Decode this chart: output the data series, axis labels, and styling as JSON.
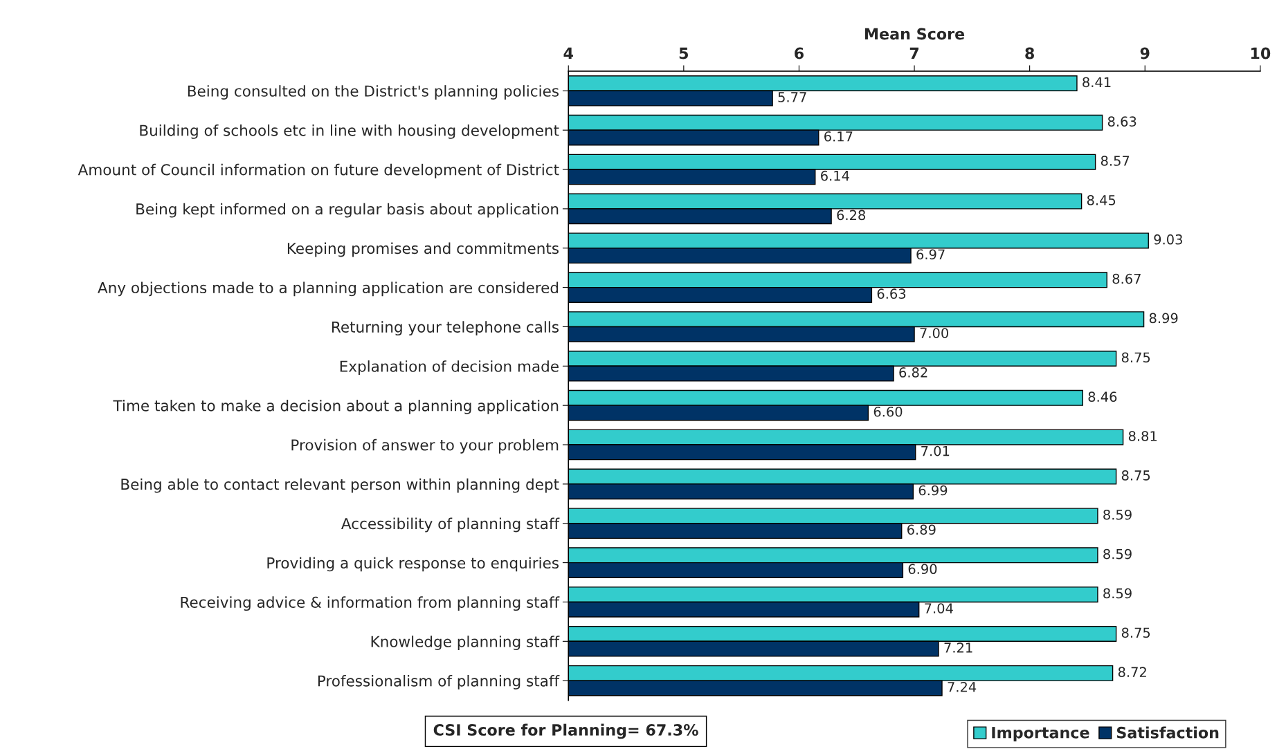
{
  "chart_data": {
    "type": "bar",
    "orientation": "horizontal",
    "xlabel": "Mean Score",
    "categories": [
      "Being consulted on the District's planning policies",
      "Building of schools etc in line with housing development",
      "Amount of Council information on future development of District",
      "Being kept informed on a regular basis about application",
      "Keeping promises and commitments",
      "Any objections made to a planning application are considered",
      "Returning your telephone calls",
      "Explanation of decision made",
      "Time taken to make a decision about a planning application",
      "Provision of answer to your problem",
      "Being able to contact relevant person within planning dept",
      "Accessibility of planning staff",
      "Providing a quick response to enquiries",
      "Receiving advice & information from planning staff",
      "Knowledge planning staff",
      "Professionalism of planning staff"
    ],
    "series": [
      {
        "name": "Importance",
        "color": "#33cccc",
        "values": [
          8.41,
          8.63,
          8.57,
          8.45,
          9.03,
          8.67,
          8.99,
          8.75,
          8.46,
          8.81,
          8.75,
          8.59,
          8.59,
          8.59,
          8.75,
          8.72
        ],
        "value_labels": [
          "8.41",
          "8.63",
          "8.57",
          "8.45",
          "9.03",
          "8.67",
          "8.99",
          "8.75",
          "8.46",
          "8.81",
          "8.75",
          "8.59",
          "8.59",
          "8.59",
          "8.75",
          "8.72"
        ]
      },
      {
        "name": "Satisfaction",
        "color": "#003366",
        "values": [
          5.77,
          6.17,
          6.14,
          6.28,
          6.97,
          6.63,
          7.0,
          6.82,
          6.6,
          7.01,
          6.99,
          6.89,
          6.9,
          7.04,
          7.21,
          7.24
        ],
        "value_labels": [
          "5.77",
          "6.17",
          "6.14",
          "6.28",
          "6.97",
          "6.63",
          "7.00",
          "6.82",
          "6.60",
          "7.01",
          "6.99",
          "6.89",
          "6.90",
          "7.04",
          "7.21",
          "7.24"
        ]
      }
    ],
    "xlim": [
      4,
      10
    ],
    "xticks": [
      4,
      5,
      6,
      7,
      8,
      9,
      10
    ],
    "grid": false,
    "legend": "bottom right",
    "annotations": [
      "CSI Score for Planning= 67.3%"
    ]
  }
}
